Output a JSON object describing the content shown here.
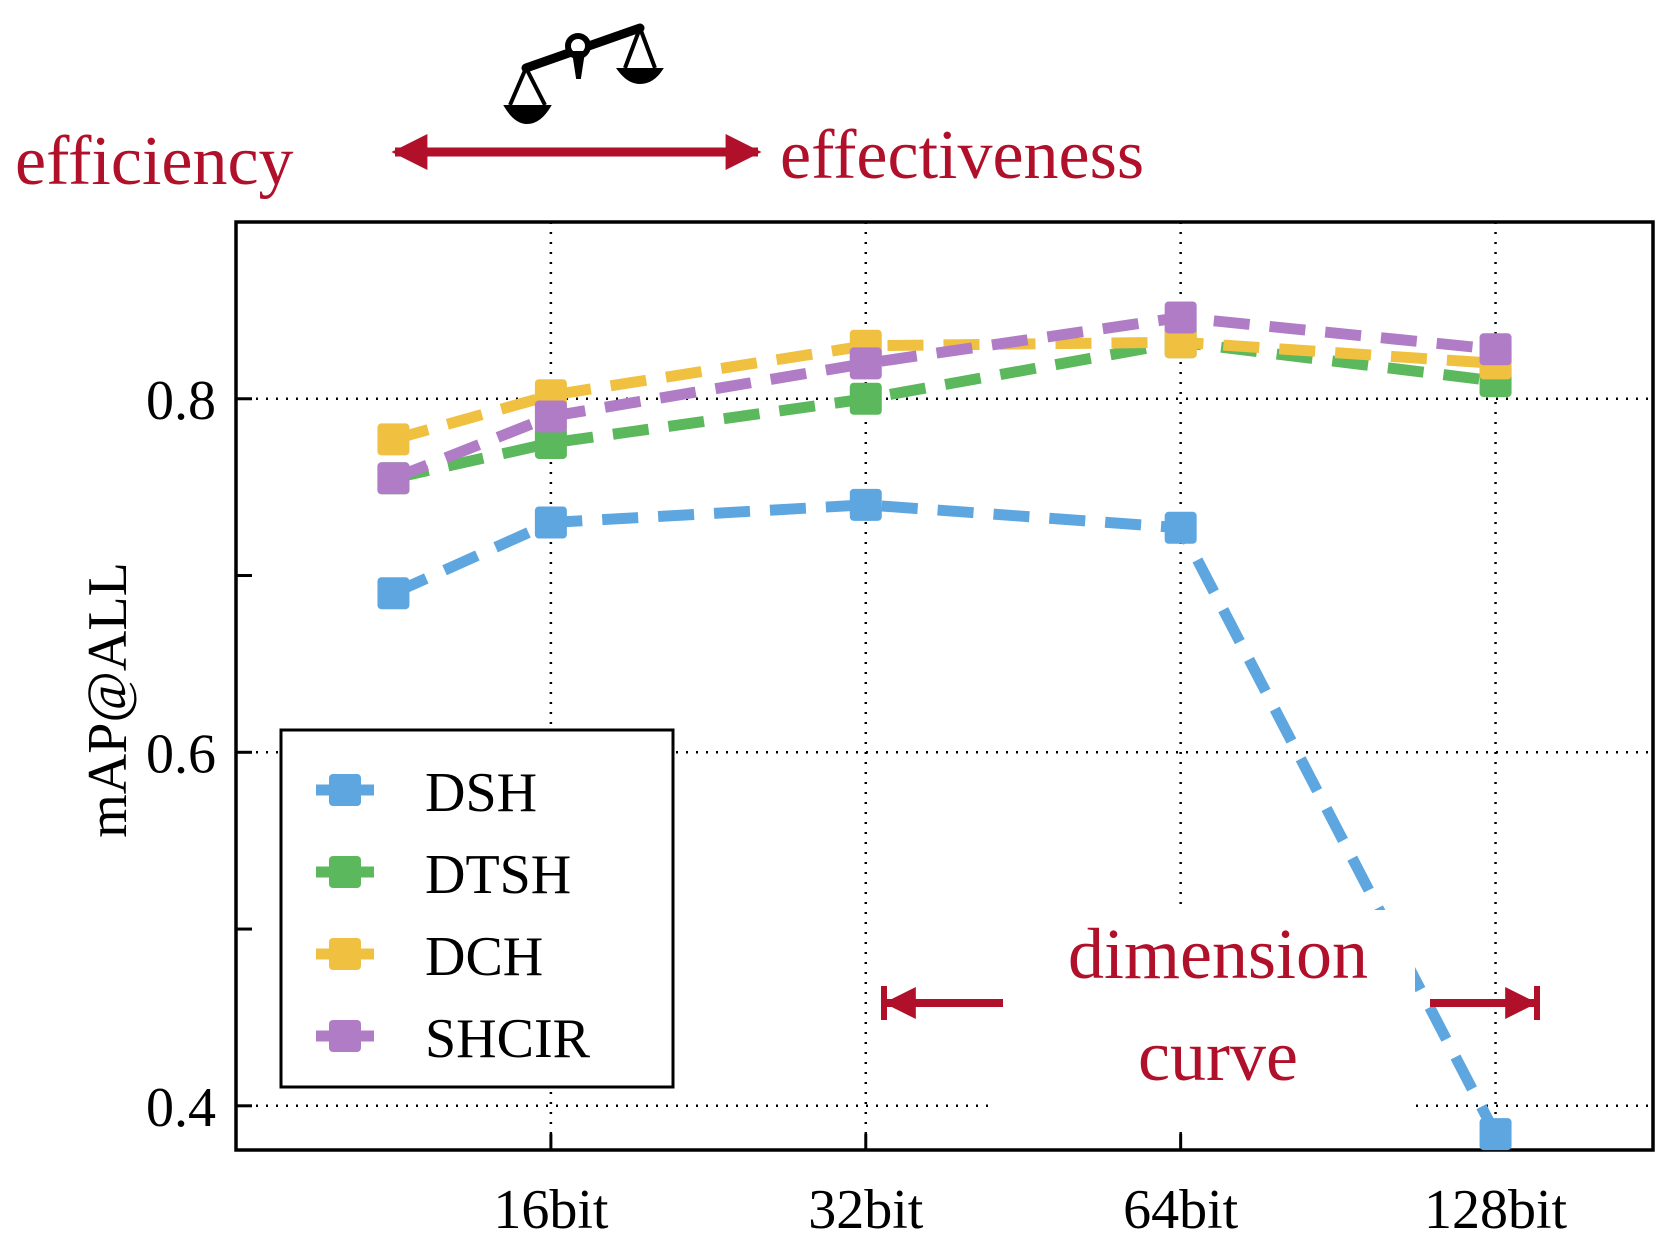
{
  "header": {
    "left_label": "efficiency",
    "right_label": "effectiveness",
    "icon": "balance-scale-icon",
    "accent_color": "#b0102a"
  },
  "annotation": {
    "line1": "dimension",
    "line2": "curve",
    "color": "#b0102a"
  },
  "chart_data": {
    "type": "line",
    "title": "",
    "xlabel": "",
    "ylabel": "mAP@ALL",
    "x_positions": [
      0.5,
      1,
      2,
      4
    ],
    "x_ticks": [
      {
        "pos": 1,
        "label": "16bit"
      },
      {
        "pos": 2,
        "label": "32bit"
      },
      {
        "pos": 3,
        "label": "64bit"
      },
      {
        "pos": 4,
        "label": "128bit"
      }
    ],
    "xlim": [
      0,
      4.5
    ],
    "ylim": [
      0.375,
      0.9
    ],
    "y_ticks": [
      {
        "value": 0.4,
        "label": "0.4"
      },
      {
        "value": 0.5,
        "label": ""
      },
      {
        "value": 0.6,
        "label": "0.6"
      },
      {
        "value": 0.7,
        "label": ""
      },
      {
        "value": 0.8,
        "label": "0.8"
      }
    ],
    "grid": true,
    "legend_position": "bottom-left",
    "series": [
      {
        "name": "DSH",
        "color": "#5ea6e0",
        "x": [
          0.5,
          1,
          2,
          3,
          4
        ],
        "values": [
          0.69,
          0.73,
          0.74,
          0.727,
          0.384
        ]
      },
      {
        "name": "DTSH",
        "color": "#5cb85c",
        "x": [
          0.5,
          1,
          2,
          3,
          4
        ],
        "values": [
          0.755,
          0.775,
          0.8,
          0.832,
          0.81
        ]
      },
      {
        "name": "DCH",
        "color": "#f0c040",
        "x": [
          0.5,
          1,
          2,
          3,
          4
        ],
        "values": [
          0.777,
          0.802,
          0.83,
          0.832,
          0.82
        ]
      },
      {
        "name": "SHCIR",
        "color": "#b07cc6",
        "x": [
          0.5,
          1,
          2,
          3,
          4
        ],
        "values": [
          0.755,
          0.79,
          0.82,
          0.846,
          0.828
        ]
      }
    ]
  }
}
